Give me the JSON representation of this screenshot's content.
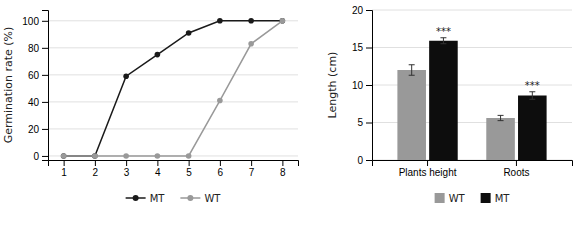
{
  "chart_data": [
    {
      "type": "line",
      "y_label": "Germination rate (%)",
      "x": [
        1,
        2,
        3,
        4,
        5,
        6,
        7,
        8
      ],
      "series": [
        {
          "name": "MT",
          "color": "#1a1a1a",
          "values": [
            0,
            0,
            59,
            75,
            91,
            100,
            100,
            100
          ]
        },
        {
          "name": "WT",
          "color": "#999999",
          "values": [
            0,
            0,
            0,
            0,
            0,
            41,
            83,
            100
          ]
        }
      ],
      "xlim": [
        0.5,
        8.5
      ],
      "xticks": [
        1,
        2,
        3,
        4,
        5,
        6,
        7,
        8
      ],
      "ylim": [
        -3,
        108
      ],
      "yticks": [
        0,
        20,
        40,
        60,
        80,
        100
      ],
      "grid": true,
      "marker": "circle",
      "legend": "bottom"
    },
    {
      "type": "bar",
      "y_label": "Length (cm)",
      "categories": [
        "Plants height",
        "Roots"
      ],
      "series": [
        {
          "name": "WT",
          "color": "#999999",
          "values": [
            12.0,
            5.6
          ],
          "errors": [
            0.7,
            0.35
          ]
        },
        {
          "name": "MT",
          "color": "#0d0d0d",
          "values": [
            15.9,
            8.6
          ],
          "errors": [
            0.4,
            0.5
          ],
          "annotations": [
            "***",
            "***"
          ]
        }
      ],
      "ylim": [
        0,
        20
      ],
      "yticks": [
        0,
        5,
        10,
        15,
        20
      ],
      "grid": true,
      "legend": "bottom"
    }
  ]
}
